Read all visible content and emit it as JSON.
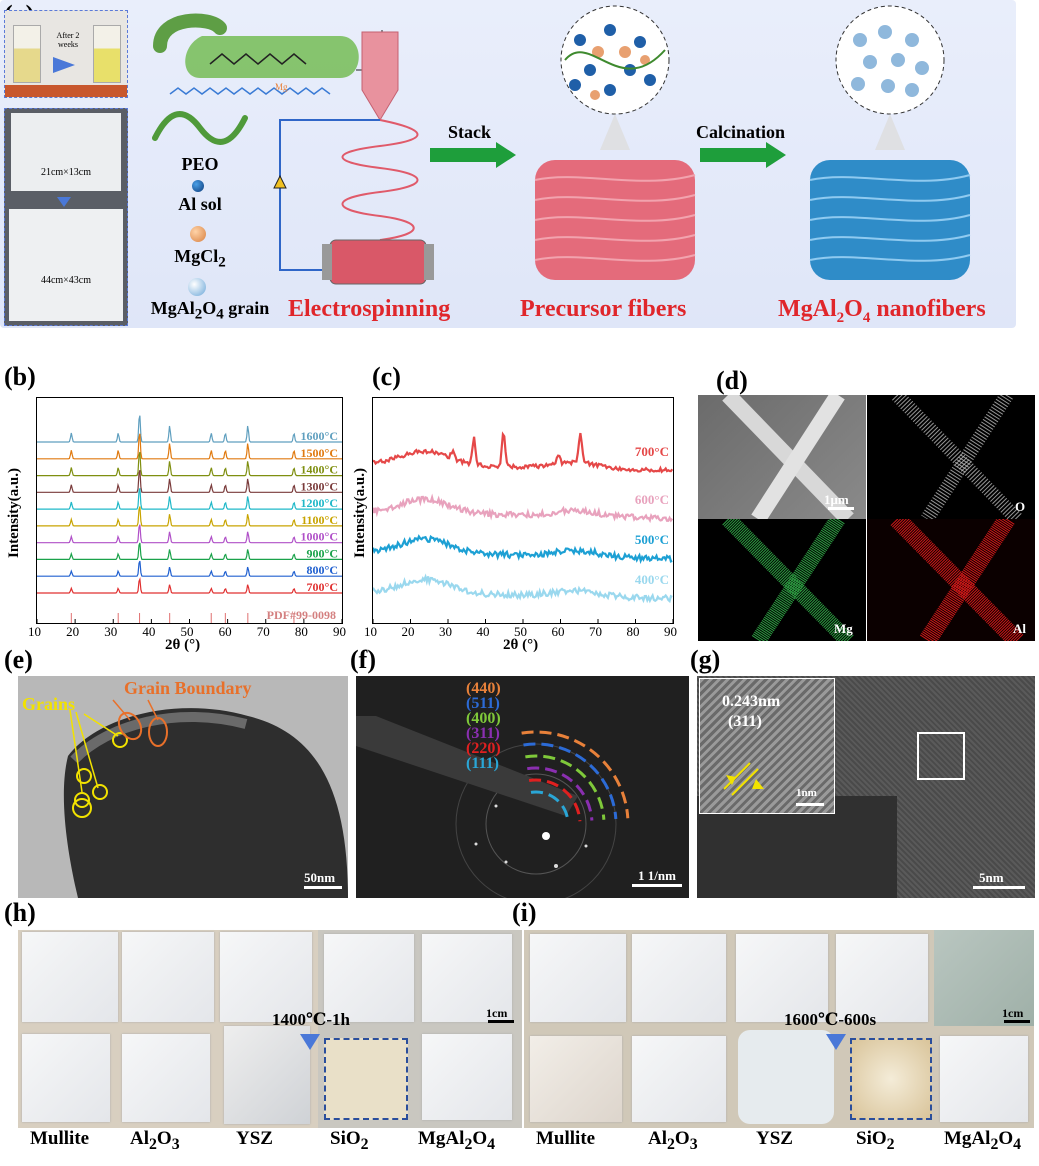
{
  "panels": {
    "a": "(a)",
    "b": "(b)",
    "c": "(c)",
    "d": "(d)",
    "e": "(e)",
    "f": "(f)",
    "g": "(g)",
    "h": "(h)",
    "i": "(i)"
  },
  "a": {
    "after_text": "After 2 weeks",
    "sheet1": "21cm×13cm",
    "sheet2": "44cm×43cm",
    "mg": "Mg",
    "legend": [
      "PEO",
      "Al sol",
      "MgCl",
      "MgAl",
      "O",
      "grain"
    ],
    "legend_sub": {
      "mgcl": "2",
      "mgal_2": "2",
      "mgal_4": "4"
    },
    "electrospinning": "Electrospinning",
    "stack": "Stack",
    "calcination": "Calcination",
    "precursor": "Precursor fibers",
    "nano_pre": "MgAl",
    "nano_o": "O",
    "nano_post": " nanofibers",
    "colors": {
      "bg": "#e5ebfa",
      "red": "#e0262b",
      "green_arrow": "#1e9e3b",
      "fiber_pink": "#e46b7b",
      "fiber_blue": "#2f8cc8"
    }
  },
  "chart_data": [
    {
      "type": "line",
      "panel": "b",
      "xlabel": "2θ (°)",
      "ylabel": "Intensity(a.u.)",
      "xlim": [
        10,
        90
      ],
      "xticks": [
        "10",
        "20",
        "30",
        "40",
        "50",
        "60",
        "70",
        "80",
        "90"
      ],
      "reference": "PDF#99-0098",
      "series": [
        {
          "name": "1600°C",
          "color": "#5f9fbf"
        },
        {
          "name": "1500°C",
          "color": "#e07a10"
        },
        {
          "name": "1400°C",
          "color": "#7f8f10"
        },
        {
          "name": "1300°C",
          "color": "#7a3b3b"
        },
        {
          "name": "1200°C",
          "color": "#1fb8c8"
        },
        {
          "name": "1100°C",
          "color": "#c8a400"
        },
        {
          "name": "1000°C",
          "color": "#b050c8"
        },
        {
          "name": "900°C",
          "color": "#1aa24a"
        },
        {
          "name": "800°C",
          "color": "#2060d0"
        },
        {
          "name": "700°C",
          "color": "#e03030"
        }
      ],
      "peaks": [
        19,
        31.3,
        36.9,
        44.8,
        55.7,
        59.4,
        65.3,
        77.4
      ]
    },
    {
      "type": "line",
      "panel": "c",
      "xlabel": "2θ (°)",
      "ylabel": "Intensity(a.u.)",
      "xlim": [
        10,
        90
      ],
      "xticks": [
        "10",
        "20",
        "30",
        "40",
        "50",
        "60",
        "70",
        "80",
        "90"
      ],
      "series": [
        {
          "name": "700°C",
          "color": "#e54848"
        },
        {
          "name": "600°C",
          "color": "#e8a2bd"
        },
        {
          "name": "500°C",
          "color": "#1da0d4"
        },
        {
          "name": "400°C",
          "color": "#9ad8ee"
        }
      ],
      "peaks_700": [
        31.3,
        36.9,
        44.8,
        59.4,
        65.3
      ]
    }
  ],
  "d": {
    "scale": "1μm",
    "o": "O",
    "mg": "Mg",
    "al": "Al"
  },
  "e": {
    "grains": "Grains",
    "boundary": "Grain Boundary",
    "scale": "50nm"
  },
  "f": {
    "rings": [
      "(440)",
      "(511)",
      "(400)",
      "(311)",
      "(220)",
      "(111)"
    ],
    "ring_colors": [
      "#e8813a",
      "#2c6bd6",
      "#7fc93a",
      "#8a2fb0",
      "#e02020",
      "#2aa6d6"
    ],
    "scale": "1 1/nm"
  },
  "g": {
    "d": "0.243nm",
    "plane": "(311)",
    "inset_scale": "1nm",
    "scale": "5nm"
  },
  "h": {
    "cond": "1400℃-1h",
    "scale": "1cm"
  },
  "i": {
    "cond": "1600℃-600s",
    "scale": "1cm"
  },
  "bottom_labels": {
    "mullite": "Mullite",
    "al": "Al",
    "al2": "2",
    "o": "O",
    "o3": "3",
    "ysz": "YSZ",
    "si": "SiO",
    "si2": "2",
    "mgal": "MgAl",
    "mgal2": "2",
    "mgal4": "4"
  }
}
